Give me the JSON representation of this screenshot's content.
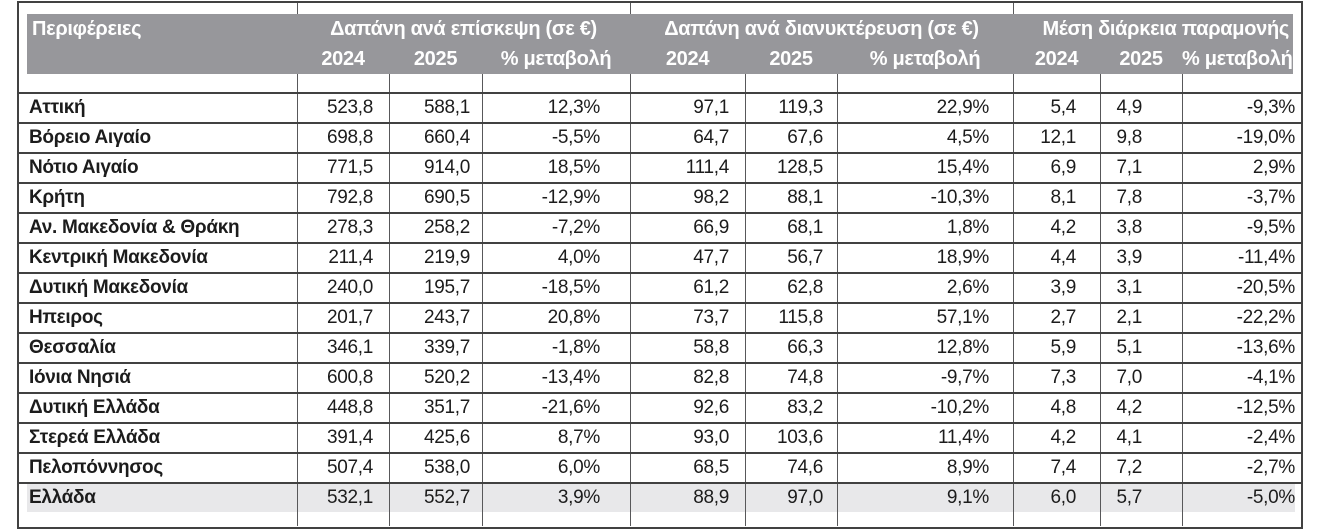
{
  "colors": {
    "header_bg": "#97979b",
    "header_text": "#ffffff",
    "total_row_bg": "#e8e8ea",
    "grid_line": "#414141",
    "column_line": "#58585a",
    "text": "#1c1c1c"
  },
  "chart_data": {
    "type": "table",
    "region_column_header": "Περιφέρειες",
    "column_groups": [
      {
        "title": "Δαπάνη ανά επίσκεψη (σε €)",
        "columns": [
          "2024",
          "2025",
          "% μεταβολή"
        ]
      },
      {
        "title": "Δαπάνη ανά διανυκτέρευση (σε €)",
        "columns": [
          "2024",
          "2025",
          "% μεταβολή"
        ]
      },
      {
        "title": "Μέση διάρκεια παραμονής",
        "columns": [
          "2024",
          "2025",
          "% μεταβολή"
        ]
      }
    ],
    "rows": [
      {
        "region": "Αττική",
        "cells": [
          "523,8",
          "588,1",
          "12,3%",
          "97,1",
          "119,3",
          "22,9%",
          "5,4",
          "4,9",
          "-9,3%"
        ],
        "is_total": false
      },
      {
        "region": "Βόρειο Αιγαίο",
        "cells": [
          "698,8",
          "660,4",
          "-5,5%",
          "64,7",
          "67,6",
          "4,5%",
          "12,1",
          "9,8",
          "-19,0%"
        ],
        "is_total": false
      },
      {
        "region": "Νότιο Αιγαίο",
        "cells": [
          "771,5",
          "914,0",
          "18,5%",
          "111,4",
          "128,5",
          "15,4%",
          "6,9",
          "7,1",
          "2,9%"
        ],
        "is_total": false
      },
      {
        "region": "Κρήτη",
        "cells": [
          "792,8",
          "690,5",
          "-12,9%",
          "98,2",
          "88,1",
          "-10,3%",
          "8,1",
          "7,8",
          "-3,7%"
        ],
        "is_total": false
      },
      {
        "region": "Αν. Μακεδονία & Θράκη",
        "cells": [
          "278,3",
          "258,2",
          "-7,2%",
          "66,9",
          "68,1",
          "1,8%",
          "4,2",
          "3,8",
          "-9,5%"
        ],
        "is_total": false
      },
      {
        "region": "Κεντρική Μακεδονία",
        "cells": [
          "211,4",
          "219,9",
          "4,0%",
          "47,7",
          "56,7",
          "18,9%",
          "4,4",
          "3,9",
          "-11,4%"
        ],
        "is_total": false
      },
      {
        "region": "Δυτική Μακεδονία",
        "cells": [
          "240,0",
          "195,7",
          "-18,5%",
          "61,2",
          "62,8",
          "2,6%",
          "3,9",
          "3,1",
          "-20,5%"
        ],
        "is_total": false
      },
      {
        "region": "Ηπειρος",
        "cells": [
          "201,7",
          "243,7",
          "20,8%",
          "73,7",
          "115,8",
          "57,1%",
          "2,7",
          "2,1",
          "-22,2%"
        ],
        "is_total": false
      },
      {
        "region": "Θεσσαλία",
        "cells": [
          "346,1",
          "339,7",
          "-1,8%",
          "58,8",
          "66,3",
          "12,8%",
          "5,9",
          "5,1",
          "-13,6%"
        ],
        "is_total": false
      },
      {
        "region": "Ιόνια Νησιά",
        "cells": [
          "600,8",
          "520,2",
          "-13,4%",
          "82,8",
          "74,8",
          "-9,7%",
          "7,3",
          "7,0",
          "-4,1%"
        ],
        "is_total": false
      },
      {
        "region": "Δυτική Ελλάδα",
        "cells": [
          "448,8",
          "351,7",
          "-21,6%",
          "92,6",
          "83,2",
          "-10,2%",
          "4,8",
          "4,2",
          "-12,5%"
        ],
        "is_total": false
      },
      {
        "region": "Στερεά Ελλάδα",
        "cells": [
          "391,4",
          "425,6",
          "8,7%",
          "93,0",
          "103,6",
          "11,4%",
          "4,2",
          "4,1",
          "-2,4%"
        ],
        "is_total": false
      },
      {
        "region": "Πελοπόννησος",
        "cells": [
          "507,4",
          "538,0",
          "6,0%",
          "68,5",
          "74,6",
          "8,9%",
          "7,4",
          "7,2",
          "-2,7%"
        ],
        "is_total": false
      },
      {
        "region": "Ελλάδα",
        "cells": [
          "532,1",
          "552,7",
          "3,9%",
          "88,9",
          "97,0",
          "9,1%",
          "6,0",
          "5,7",
          "-5,0%"
        ],
        "is_total": true
      }
    ]
  }
}
